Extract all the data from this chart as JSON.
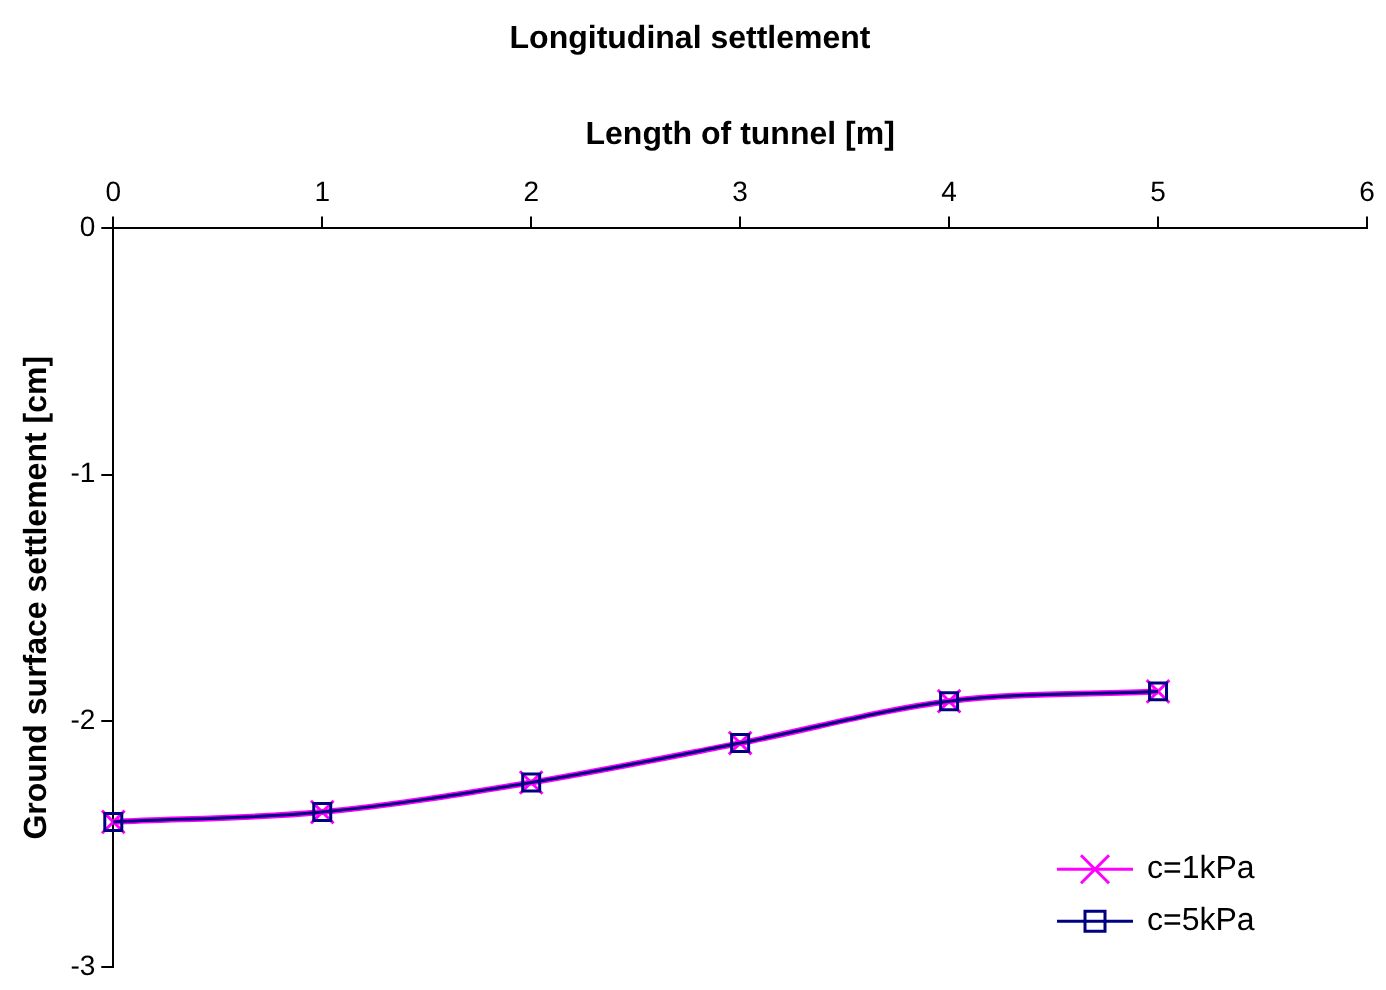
{
  "chart_data": {
    "type": "line",
    "title": "Longitudinal settlement",
    "xlabel": "Length of tunnel [m]",
    "ylabel": "Ground surface settlement [cm]",
    "x": [
      0,
      1,
      2,
      3,
      4,
      5
    ],
    "series": [
      {
        "name": "c=1kPa",
        "color": "#ff00ff",
        "marker": "cross",
        "values": [
          -2.41,
          -2.37,
          -2.25,
          -2.09,
          -1.92,
          -1.88
        ]
      },
      {
        "name": "c=5kPa",
        "color": "#000080",
        "marker": "square",
        "values": [
          -2.41,
          -2.37,
          -2.25,
          -2.09,
          -1.92,
          -1.88
        ]
      }
    ],
    "xlim": [
      0,
      6
    ],
    "xticks": [
      0,
      1,
      2,
      3,
      4,
      5,
      6
    ],
    "ylim": [
      -3,
      0
    ],
    "yticks": [
      -3,
      -2,
      -1,
      0
    ],
    "grid": false,
    "legend": "bottom right",
    "line_style": "solid"
  }
}
